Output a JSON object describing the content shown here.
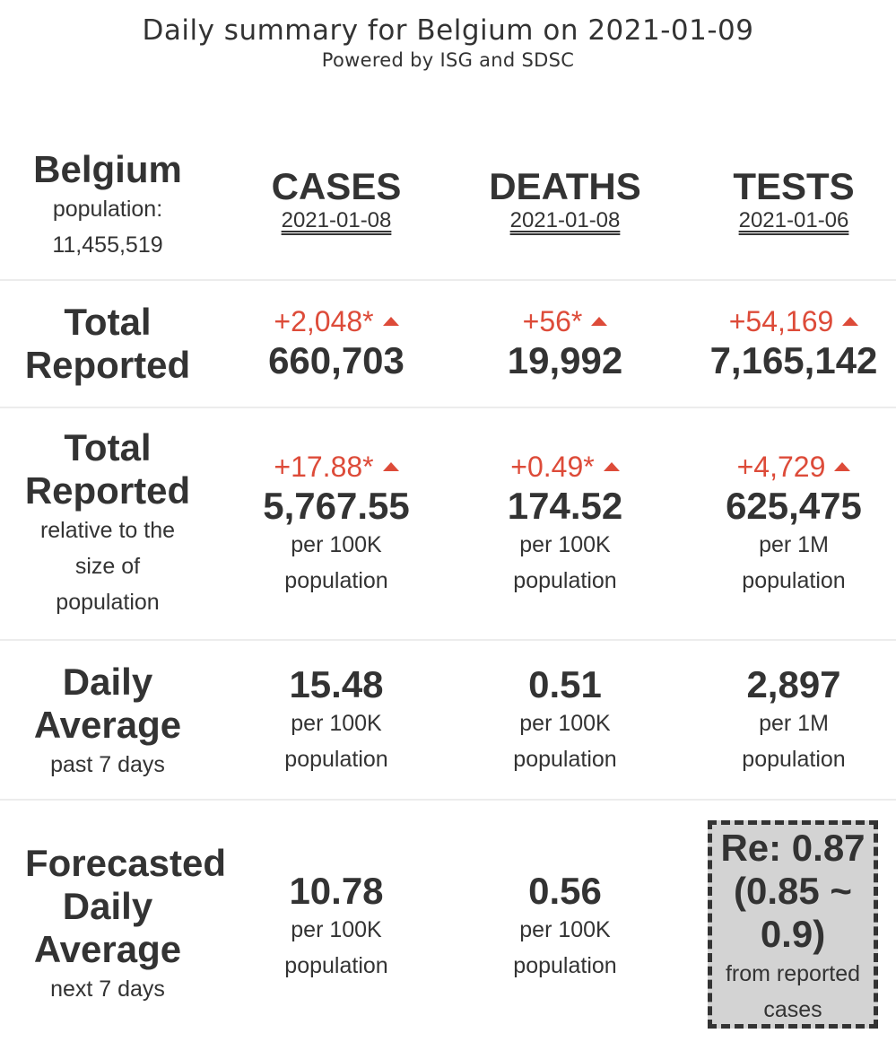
{
  "header": {
    "title": "Daily summary for Belgium on 2021-01-09",
    "subtitle": "Powered by ISG and SDSC"
  },
  "country": {
    "name": "Belgium",
    "population_label": "population:",
    "population": "11,455,519"
  },
  "columns": [
    {
      "label": "CASES",
      "date": "2021-01-08"
    },
    {
      "label": "DEATHS",
      "date": "2021-01-08"
    },
    {
      "label": "TESTS",
      "date": "2021-01-06"
    }
  ],
  "total_reported": {
    "label_line1": "Total",
    "label_line2": "Reported",
    "cases": {
      "delta": "+2,048*",
      "value": "660,703"
    },
    "deaths": {
      "delta": "+56*",
      "value": "19,992"
    },
    "tests": {
      "delta": "+54,169",
      "value": "7,165,142"
    }
  },
  "relative": {
    "label_line1": "Total",
    "label_line2": "Reported",
    "sub1": "relative to the",
    "sub2": "size of",
    "sub3": "population",
    "cases": {
      "delta": "+17.88*",
      "value": "5,767.55",
      "unit": "per 100K",
      "unit2": "population"
    },
    "deaths": {
      "delta": "+0.49*",
      "value": "174.52",
      "unit": "per 100K",
      "unit2": "population"
    },
    "tests": {
      "delta": "+4,729",
      "value": "625,475",
      "unit": "per 1M",
      "unit2": "population"
    }
  },
  "daily_average": {
    "label_line1": "Daily",
    "label_line2": "Average",
    "sub": "past 7 days",
    "cases": {
      "value": "15.48",
      "unit": "per 100K",
      "unit2": "population"
    },
    "deaths": {
      "value": "0.51",
      "unit": "per 100K",
      "unit2": "population"
    },
    "tests": {
      "value": "2,897",
      "unit": "per 1M",
      "unit2": "population"
    }
  },
  "forecast": {
    "label_line1": "Forecasted",
    "label_line2": "Daily",
    "label_line3": "Average",
    "sub": "next 7 days",
    "cases": {
      "value": "10.78",
      "unit": "per 100K",
      "unit2": "population"
    },
    "deaths": {
      "value": "0.56",
      "unit": "per 100K",
      "unit2": "population"
    },
    "re": {
      "line1": "Re: 0.87",
      "line2": "(0.85 ~",
      "line3": "0.9)",
      "from1": "from reported",
      "from2": "cases"
    }
  },
  "colors": {
    "increase": "#dd4b39",
    "text": "#333333",
    "re_box": "#d3d3d3"
  },
  "icons": {
    "increase": "triangle-up-icon"
  }
}
